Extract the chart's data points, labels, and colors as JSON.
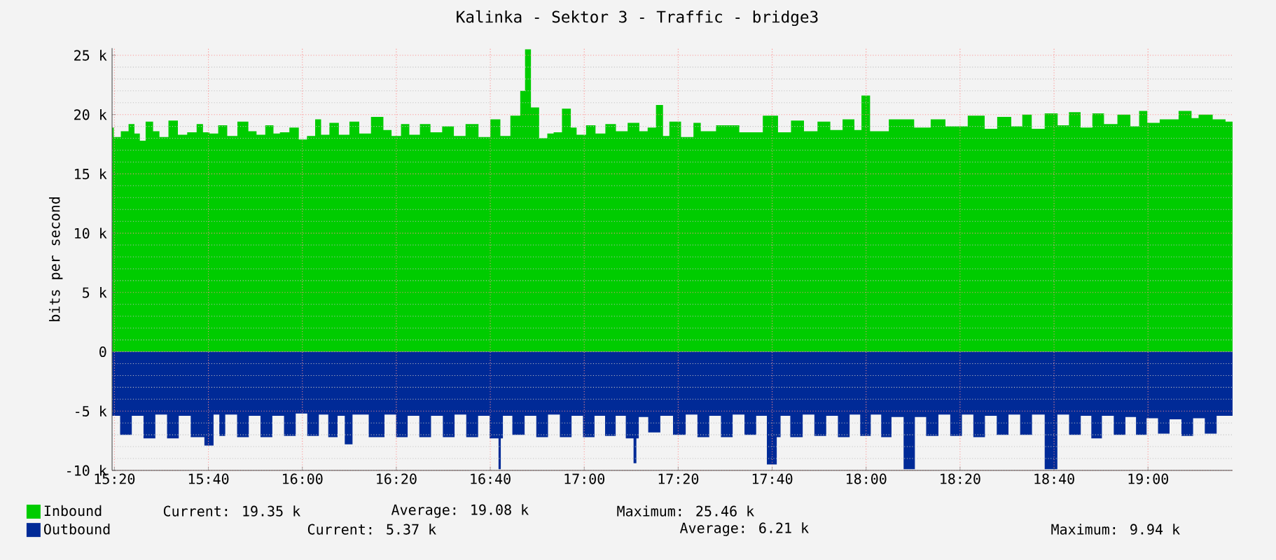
{
  "chart_data": {
    "type": "area",
    "title": "Kalinka - Sektor 3 - Traffic - bridge3",
    "ylabel": "bits per second",
    "xlim": [
      15.325,
      19.3
    ],
    "ylim": [
      -10000,
      25600
    ],
    "xticks": [
      {
        "value": 15.3333,
        "label": "15:20"
      },
      {
        "value": 15.6667,
        "label": "15:40"
      },
      {
        "value": 16,
        "label": "16:00"
      },
      {
        "value": 16.3333,
        "label": "16:20"
      },
      {
        "value": 16.6667,
        "label": "16:40"
      },
      {
        "value": 17,
        "label": "17:00"
      },
      {
        "value": 17.3333,
        "label": "17:20"
      },
      {
        "value": 17.6667,
        "label": "17:40"
      },
      {
        "value": 18,
        "label": "18:00"
      },
      {
        "value": 18.3333,
        "label": "18:20"
      },
      {
        "value": 18.6667,
        "label": "18:40"
      },
      {
        "value": 19,
        "label": "19:00"
      }
    ],
    "yticks": [
      {
        "value": -10000,
        "label": "-10 k"
      },
      {
        "value": -5000,
        "label": "-5 k"
      },
      0,
      {
        "value": 5000,
        "label": "5 k"
      },
      {
        "value": 10000,
        "label": "10 k"
      },
      {
        "value": 15000,
        "label": "15 k"
      },
      {
        "value": 20000,
        "label": "20 k"
      },
      {
        "value": 25000,
        "label": "25 k"
      }
    ],
    "grid": true,
    "legend": "bottom",
    "annotations": [
      "Current: 19.35 k",
      "Average: 19.08 k",
      "Maximum: 25.46 k",
      "Current: 5.37 k",
      "Average: 6.21 k",
      "Maximum: 9.94 k"
    ],
    "series": [
      {
        "name": "Inbound",
        "color": "#00cc00",
        "x": [
          15.325,
          15.337,
          15.375,
          15.392,
          15.417,
          15.43,
          15.458,
          15.483,
          15.503,
          15.547,
          15.57,
          15.613,
          15.637,
          15.658,
          15.683,
          15.72,
          15.747,
          15.792,
          15.825,
          15.85,
          15.887,
          15.908,
          15.933,
          15.975,
          16.0,
          16.033,
          16.058,
          16.075,
          16.117,
          16.142,
          16.192,
          16.212,
          16.275,
          16.3,
          16.333,
          16.367,
          16.392,
          16.442,
          16.467,
          16.525,
          16.55,
          16.608,
          16.642,
          16.692,
          16.713,
          16.763,
          16.783,
          16.797,
          16.825,
          16.855,
          16.883,
          16.9,
          16.942,
          16.963,
          16.983,
          17.03,
          17.05,
          17.1,
          17.125,
          17.183,
          17.208,
          17.242,
          17.267,
          17.292,
          17.312,
          17.375,
          17.4,
          17.427,
          17.508,
          17.592,
          17.675,
          17.7,
          17.767,
          17.792,
          17.863,
          17.883,
          17.95,
          17.967,
          18.0,
          18.028,
          18.133,
          18.208,
          18.25,
          18.313,
          18.408,
          18.433,
          18.497,
          18.533,
          18.575,
          18.6,
          18.667,
          18.692,
          18.747,
          18.775,
          18.83,
          18.858,
          18.925,
          18.95,
          18.987,
          19.008,
          19.075,
          19.142,
          19.167,
          19.192,
          19.267,
          19.283,
          19.3
        ],
        "values": [
          18900,
          18100,
          18600,
          19200,
          18400,
          17800,
          19400,
          18600,
          18100,
          19500,
          18300,
          18500,
          19200,
          18500,
          18400,
          19100,
          18200,
          19400,
          18600,
          18300,
          19100,
          18400,
          18500,
          18900,
          17900,
          18200,
          19600,
          18300,
          19300,
          18300,
          19400,
          18400,
          19800,
          18700,
          18200,
          19200,
          18300,
          19200,
          18500,
          19000,
          18200,
          19200,
          18100,
          19600,
          18200,
          19900,
          22000,
          25500,
          20600,
          18000,
          18400,
          18500,
          20500,
          18900,
          18300,
          19100,
          18400,
          19200,
          18600,
          19300,
          18600,
          18900,
          20800,
          18200,
          19400,
          18100,
          19300,
          18600,
          19100,
          18500,
          19900,
          18500,
          19500,
          18600,
          19400,
          18700,
          19600,
          18700,
          21600,
          18600,
          19600,
          18900,
          19600,
          19000,
          19900,
          18800,
          19800,
          19000,
          20000,
          18800,
          20100,
          19100,
          20200,
          18900,
          20100,
          19200,
          20000,
          19000,
          20300,
          19300,
          19600,
          20300,
          19700,
          20000,
          19600,
          19400,
          19400
        ]
      },
      {
        "name": "Outbound",
        "color": "#002a97",
        "x": [
          15.325,
          15.382,
          15.408,
          15.465,
          15.492,
          15.548,
          15.575,
          15.633,
          15.672,
          15.698,
          15.713,
          15.74,
          15.797,
          15.823,
          15.88,
          15.907,
          15.963,
          15.99,
          16.045,
          16.072,
          16.112,
          16.138,
          16.163,
          16.193,
          16.278,
          16.305,
          16.36,
          16.387,
          16.443,
          16.47,
          16.527,
          16.553,
          16.61,
          16.637,
          16.692,
          16.7,
          16.708,
          16.715,
          16.775,
          16.802,
          16.858,
          16.885,
          16.942,
          16.968,
          17.023,
          17.05,
          17.098,
          17.125,
          17.17,
          17.18,
          17.19,
          17.197,
          17.257,
          17.283,
          17.347,
          17.373,
          17.43,
          17.457,
          17.513,
          17.54,
          17.597,
          17.623,
          17.673,
          17.693,
          17.7,
          17.762,
          17.788,
          17.845,
          17.872,
          17.928,
          17.955,
          18.003,
          18.03,
          18.077,
          18.103,
          18.163,
          18.183,
          18.243,
          18.27,
          18.327,
          18.353,
          18.408,
          18.435,
          18.492,
          18.518,
          18.575,
          18.602,
          18.665,
          18.692,
          18.748,
          18.775,
          18.823,
          18.85,
          18.907,
          18.933,
          18.982,
          19.008,
          19.063,
          19.09,
          19.147,
          19.173,
          19.23,
          19.257,
          19.3
        ],
        "values": [
          -5400,
          -7000,
          -5400,
          -7300,
          -5300,
          -7300,
          -5400,
          -7200,
          -7900,
          -5300,
          -7100,
          -5300,
          -7200,
          -5400,
          -7200,
          -5400,
          -7100,
          -5200,
          -7100,
          -5300,
          -7200,
          -5400,
          -7800,
          -5300,
          -7200,
          -5300,
          -7200,
          -5400,
          -7200,
          -5400,
          -7200,
          -5300,
          -7200,
          -5400,
          -7300,
          -9900,
          -7300,
          -5400,
          -7000,
          -5400,
          -7200,
          -5300,
          -7200,
          -5400,
          -7200,
          -5400,
          -7100,
          -5400,
          -7300,
          -9400,
          -7300,
          -5500,
          -6800,
          -5400,
          -7000,
          -5300,
          -7200,
          -5400,
          -7200,
          -5300,
          -7000,
          -5400,
          -9500,
          -7200,
          -5400,
          -7200,
          -5300,
          -7100,
          -5400,
          -7200,
          -5300,
          -7100,
          -5300,
          -7200,
          -5500,
          -9900,
          -5500,
          -7100,
          -5300,
          -7100,
          -5300,
          -7200,
          -5400,
          -7000,
          -5300,
          -7000,
          -5300,
          -9900,
          -5300,
          -7000,
          -5400,
          -7300,
          -5400,
          -7000,
          -5500,
          -7000,
          -5600,
          -6900,
          -5700,
          -7100,
          -5600,
          -6900,
          -5400,
          -5400
        ]
      }
    ]
  }
}
